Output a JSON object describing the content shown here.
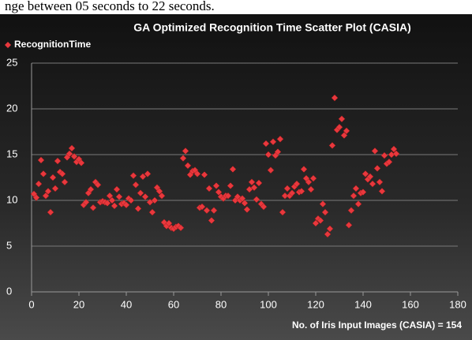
{
  "document_text": "nge between 05 seconds to 22 seconds.",
  "chart_data": {
    "type": "scatter",
    "title": "GA Optimized Recognition Time Scatter Plot (CASIA)",
    "x_label": "No. of Iris Input Images (CASIA) = 154",
    "legend": "top-left",
    "grid": true,
    "xlim": [
      0,
      180
    ],
    "xticks": [
      0,
      20,
      40,
      60,
      80,
      100,
      120,
      140,
      160,
      180
    ],
    "ylim": [
      0,
      25
    ],
    "yticks": [
      0,
      5,
      10,
      15,
      20,
      25
    ],
    "x": [
      1,
      2,
      3,
      4,
      5,
      6,
      7,
      8,
      9,
      10,
      11,
      12,
      13,
      14,
      15,
      16,
      17,
      18,
      19,
      20,
      21,
      22,
      23,
      24,
      25,
      26,
      27,
      28,
      29,
      30,
      31,
      32,
      33,
      34,
      35,
      36,
      37,
      38,
      39,
      40,
      41,
      42,
      43,
      44,
      45,
      46,
      47,
      48,
      49,
      50,
      51,
      52,
      53,
      54,
      55,
      56,
      57,
      58,
      59,
      60,
      61,
      62,
      63,
      64,
      65,
      66,
      67,
      68,
      69,
      70,
      71,
      72,
      73,
      74,
      75,
      76,
      77,
      78,
      79,
      80,
      81,
      82,
      83,
      84,
      85,
      86,
      87,
      88,
      89,
      90,
      91,
      92,
      93,
      94,
      95,
      96,
      97,
      98,
      99,
      100,
      101,
      102,
      103,
      104,
      105,
      106,
      107,
      108,
      109,
      110,
      111,
      112,
      113,
      114,
      115,
      116,
      117,
      118,
      119,
      120,
      121,
      122,
      123,
      124,
      125,
      126,
      127,
      128,
      129,
      130,
      131,
      132,
      133,
      134,
      135,
      136,
      137,
      138,
      139,
      140,
      141,
      142,
      143,
      144,
      145,
      146,
      147,
      148,
      149,
      150,
      151,
      152,
      153,
      154
    ],
    "series": [
      {
        "name": "RecognitionTime",
        "color": "#e8383d",
        "values": [
          10.7,
          10.3,
          11.8,
          14.4,
          12.9,
          10.5,
          11.0,
          8.7,
          12.5,
          11.3,
          14.3,
          13.1,
          12.9,
          12.0,
          14.7,
          15.1,
          15.7,
          14.8,
          14.2,
          14.5,
          14.1,
          9.5,
          9.8,
          10.8,
          11.2,
          9.2,
          12.0,
          11.7,
          9.8,
          9.9,
          9.8,
          9.7,
          10.5,
          10.0,
          9.4,
          11.2,
          10.4,
          9.6,
          9.7,
          9.5,
          10.2,
          10.0,
          12.7,
          11.7,
          9.1,
          10.8,
          12.6,
          10.4,
          12.9,
          9.8,
          8.7,
          10.0,
          11.4,
          11.0,
          10.5,
          7.6,
          7.2,
          7.5,
          7.0,
          6.9,
          7.1,
          7.2,
          7.0,
          14.6,
          15.4,
          13.8,
          12.8,
          13.2,
          13.3,
          12.9,
          9.2,
          9.3,
          12.8,
          8.9,
          11.3,
          7.8,
          8.9,
          11.6,
          10.9,
          10.4,
          10.2,
          10.5,
          10.5,
          11.6,
          13.4,
          10.0,
          10.4,
          10.0,
          10.2,
          9.7,
          9.0,
          11.2,
          12.0,
          11.4,
          10.1,
          11.9,
          9.6,
          9.3,
          16.2,
          15.0,
          13.3,
          16.4,
          14.9,
          15.3,
          16.7,
          8.7,
          10.5,
          11.3,
          10.5,
          10.8,
          11.5,
          11.8,
          10.9,
          11.0,
          13.4,
          12.4,
          12.0,
          11.2,
          12.4,
          7.5,
          8.0,
          7.8,
          9.6,
          8.7,
          6.3,
          6.9,
          16.0,
          21.2,
          17.7,
          18.0,
          18.9,
          17.1,
          17.6,
          7.3,
          8.9,
          10.5,
          11.3,
          9.6,
          10.8,
          10.9,
          12.9,
          12.3,
          12.6,
          11.8,
          15.4,
          13.5,
          12.0,
          11.0,
          14.9,
          14.0,
          14.2,
          15.0,
          15.6,
          15.1
        ]
      }
    ]
  }
}
